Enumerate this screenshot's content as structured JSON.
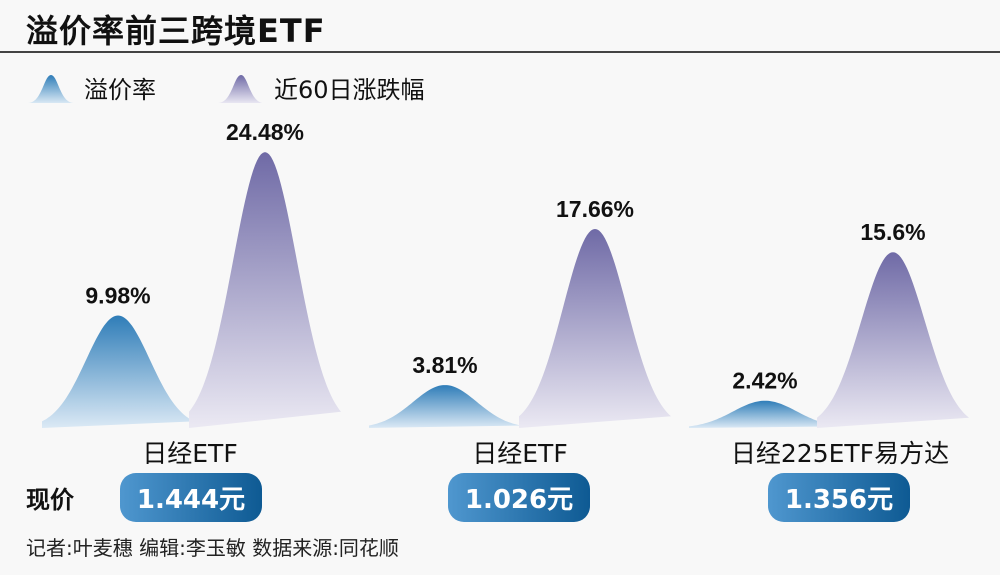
{
  "title": "溢价率前三跨境ETF",
  "price_label": "现价",
  "footer": "记者:叶麦穗   编辑:李玉敏   数据来源:同花顺",
  "colors": {
    "premium": "#2f7db8",
    "change60": "#6f6aa6",
    "pill": "#1a6aa6"
  },
  "chart_data": {
    "type": "bar",
    "title": "溢价率前三跨境ETF",
    "categories": [
      "日经ETF",
      "日经ETF",
      "日经225ETF易方达"
    ],
    "legend_position": "top-left",
    "grid": false,
    "series": [
      {
        "name": "溢价率",
        "values": [
          9.98,
          3.81,
          2.42
        ],
        "labels": [
          "9.98%",
          "3.81%",
          "2.42%"
        ]
      },
      {
        "name": "近60日涨跌幅",
        "values": [
          24.48,
          17.66,
          15.6
        ],
        "labels": [
          "24.48%",
          "17.66%",
          "15.6%"
        ]
      }
    ],
    "prices": [
      "1.444元",
      "1.026元",
      "1.356元"
    ]
  }
}
